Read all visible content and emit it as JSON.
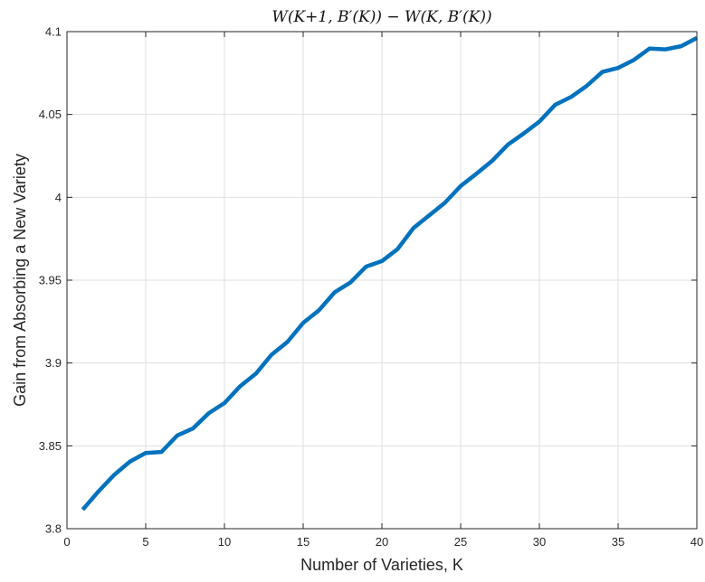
{
  "chart_data": {
    "type": "line",
    "title": "W(K+1, B′(K)) − W(K, B′(K))",
    "xlabel": "Number of Varieties, K",
    "ylabel": "Gain from Absorbing a New Variety",
    "xlim": [
      0,
      40
    ],
    "ylim": [
      3.8,
      4.1
    ],
    "xticks": [
      0,
      5,
      10,
      15,
      20,
      25,
      30,
      35,
      40
    ],
    "yticks": [
      3.8,
      3.85,
      3.9,
      3.95,
      4.0,
      4.05,
      4.1
    ],
    "xtick_labels": [
      "0",
      "5",
      "10",
      "15",
      "20",
      "25",
      "30",
      "35",
      "40"
    ],
    "ytick_labels": [
      "3.8",
      "3.85",
      "3.9",
      "3.95",
      "4",
      "4.05",
      "4.1"
    ],
    "grid": true,
    "line_color": "#0072BD",
    "series": [
      {
        "x": [
          1,
          2,
          3,
          4,
          5,
          6,
          7,
          8,
          9,
          10,
          11,
          12,
          13,
          14,
          15,
          16,
          17,
          18,
          19,
          20,
          21,
          22,
          23,
          24,
          25,
          26,
          27,
          28,
          29,
          30,
          31,
          32,
          33,
          34,
          35,
          36,
          37,
          38,
          39,
          40
        ],
        "values": [
          3.8115,
          3.8225,
          3.8325,
          3.8405,
          3.8457,
          3.8463,
          3.8562,
          3.8605,
          3.8697,
          3.8758,
          3.886,
          3.8936,
          3.9051,
          3.9127,
          3.9242,
          3.9318,
          3.9427,
          3.9486,
          3.9582,
          3.9615,
          3.9688,
          3.9814,
          3.9891,
          3.9967,
          4.0068,
          4.0142,
          4.022,
          4.0318,
          4.0385,
          4.0457,
          4.0558,
          4.0605,
          4.0672,
          4.0757,
          4.0781,
          4.0829,
          4.0898,
          4.0893,
          4.0912,
          4.0962
        ]
      }
    ]
  }
}
